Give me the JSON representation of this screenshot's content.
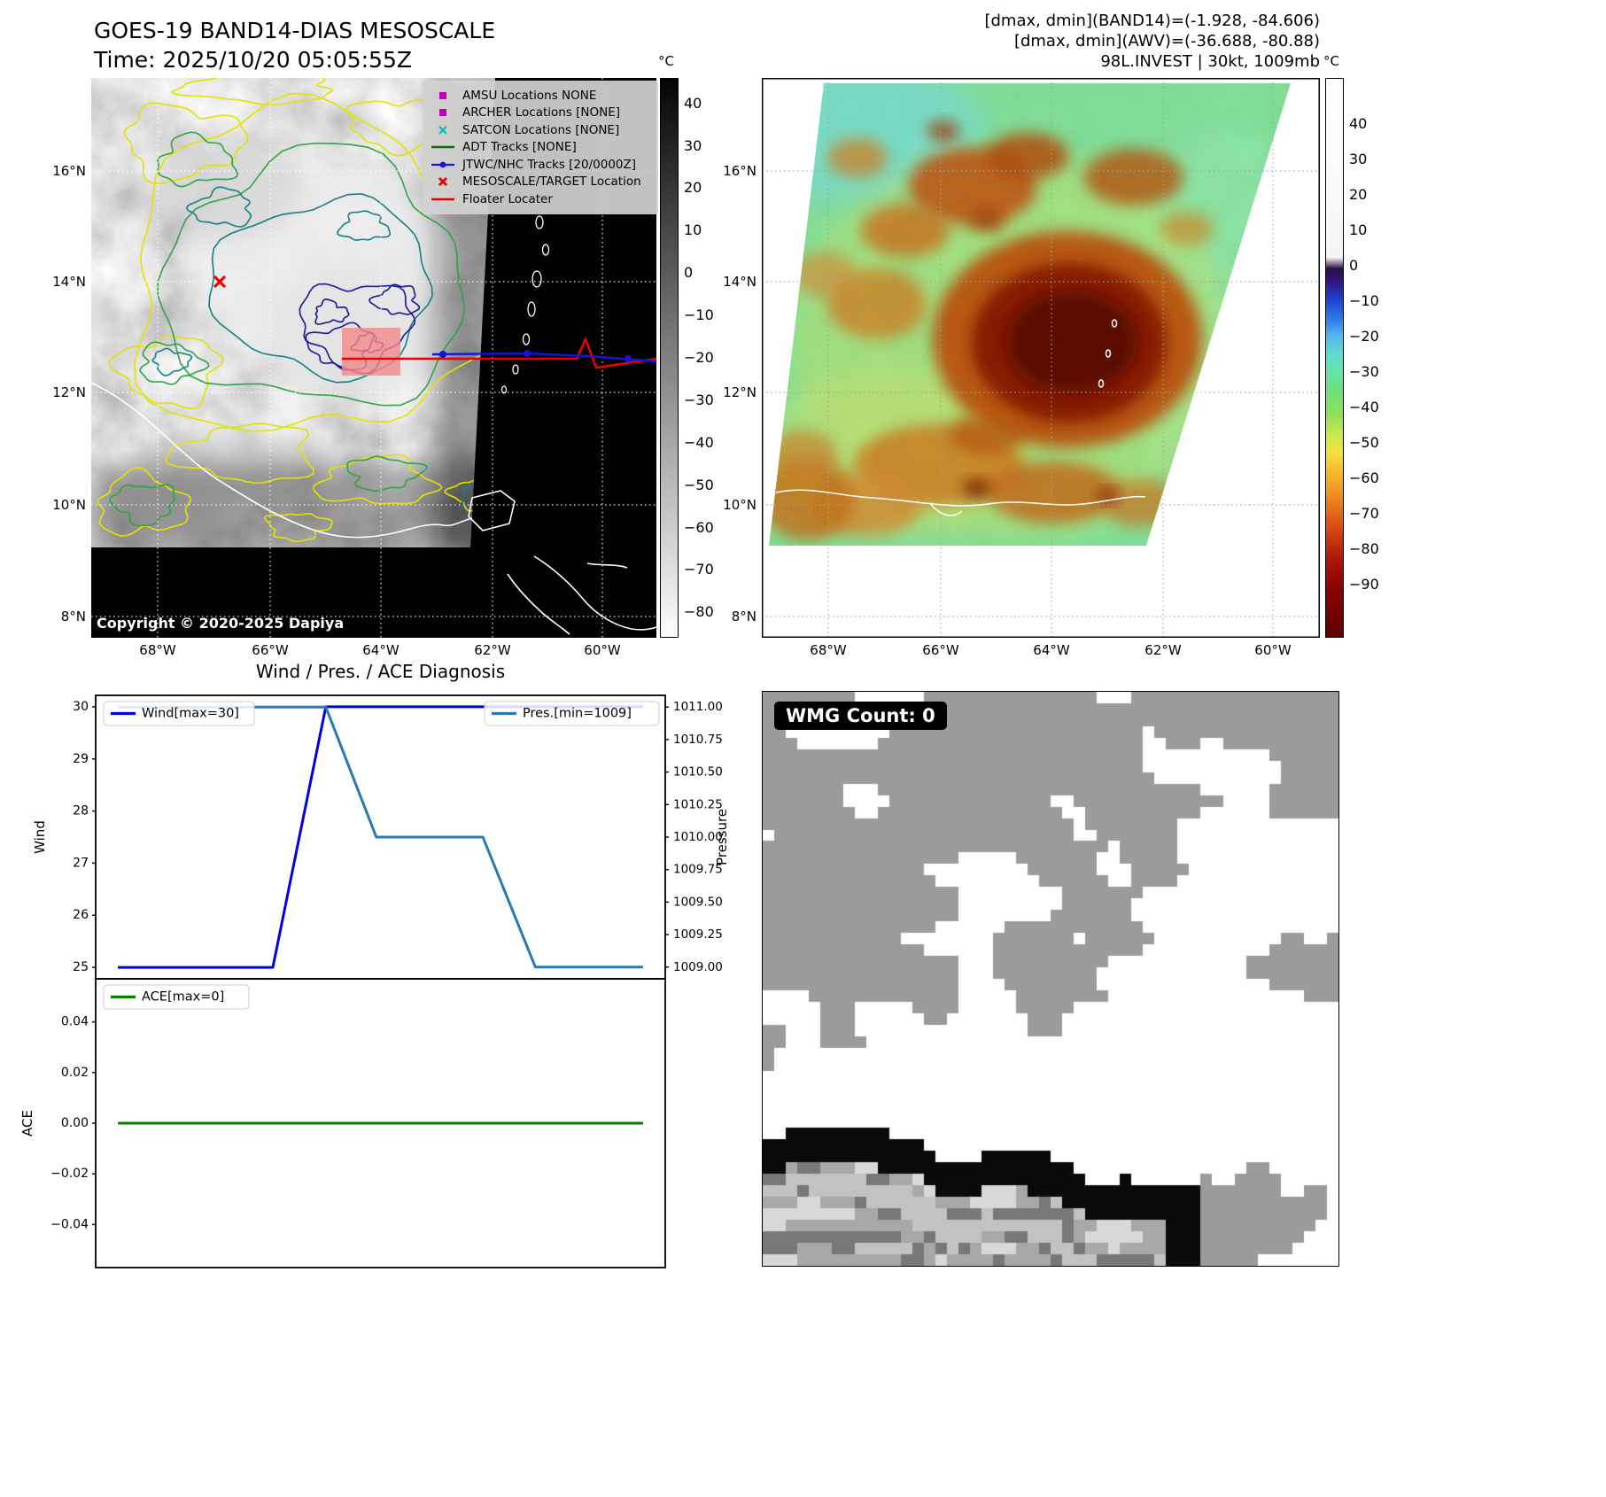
{
  "band14": {
    "title": "GOES-19 BAND14-DIAS MESOSCALE",
    "time": "Time: 2025/10/20 05:05:55Z",
    "copyright": "Copyright © 2020-2025 Dapiya",
    "colorbar": {
      "unit": "°C",
      "ticks": [
        "40",
        "30",
        "20",
        "10",
        "0",
        "−10",
        "−20",
        "−30",
        "−40",
        "−50",
        "−60",
        "−70",
        "−80"
      ]
    },
    "legend": {
      "items": [
        {
          "label": "AMSU Locations NONE",
          "marker": "square",
          "color": "#b800b8"
        },
        {
          "label": "ARCHER Locations [NONE]",
          "marker": "square",
          "color": "#b800b8"
        },
        {
          "label": "SATCON Locations [NONE]",
          "marker": "x",
          "color": "#00b8b8"
        },
        {
          "label": "ADT Tracks [NONE]",
          "marker": "line",
          "color": "#0c6b0c"
        },
        {
          "label": "JTWC/NHC Tracks [20/0000Z]",
          "marker": "line-dot",
          "color": "#1414e6"
        },
        {
          "label": "MESOSCALE/TARGET Location",
          "marker": "x-bold",
          "color": "#e60000"
        },
        {
          "label": "Floater Locater",
          "marker": "line",
          "color": "#e60000"
        }
      ]
    }
  },
  "awv": {
    "annotations": [
      "[dmax, dmin](BAND14)=(-1.928, -84.606)",
      "[dmax, dmin](AWV)=(-36.688, -80.88)",
      "98L.INVEST | 30kt, 1009mb"
    ],
    "colorbar": {
      "unit": "°C",
      "ticks": [
        "40",
        "30",
        "20",
        "10",
        "0",
        "−10",
        "−20",
        "−30",
        "−40",
        "−50",
        "−60",
        "−70",
        "−80",
        "−90"
      ]
    }
  },
  "map_axes": {
    "lat": [
      "16°N",
      "14°N",
      "12°N",
      "10°N",
      "8°N"
    ],
    "lon": [
      "68°W",
      "66°W",
      "64°W",
      "62°W",
      "60°W"
    ]
  },
  "wmg": {
    "label": "WMG Count: 0"
  },
  "chart_data": [
    {
      "type": "line",
      "title": "Wind / Pres. / ACE Diagnosis",
      "axes": {
        "left": {
          "label": "Wind",
          "lim": [
            24.78,
            30.22
          ],
          "ticks": [
            "30",
            "29",
            "28",
            "27",
            "26",
            "25"
          ]
        },
        "right": {
          "label": "Pressure",
          "lim": [
            1008.91,
            1011.09
          ],
          "ticks": [
            "1011.00",
            "1010.75",
            "1010.50",
            "1010.25",
            "1010.00",
            "1009.75",
            "1009.50",
            "1009.25",
            "1009.00"
          ]
        }
      },
      "series": [
        {
          "name": "Wind[max=30]",
          "color": "#0000e6",
          "axis": "left",
          "x": [
            0,
            0.295,
            0.396,
            1
          ],
          "y": [
            25,
            25,
            30,
            30
          ]
        },
        {
          "name": "Pres.[min=1009]",
          "color": "#2878b4",
          "axis": "right",
          "x": [
            0,
            0.396,
            0.492,
            0.695,
            0.795,
            1
          ],
          "y": [
            1011,
            1011,
            1010,
            1010,
            1009,
            1009
          ]
        }
      ],
      "legend_position": [
        "upper left",
        "upper right"
      ],
      "grid": false
    },
    {
      "type": "line",
      "axes": {
        "left": {
          "label": "ACE",
          "lim": [
            -0.057,
            0.057
          ],
          "ticks": [
            "0.04",
            "0.02",
            "0.00",
            "−0.02",
            "−0.04"
          ]
        }
      },
      "series": [
        {
          "name": "ACE[max=0]",
          "color": "#007f00",
          "axis": "left",
          "x": [
            0,
            1
          ],
          "y": [
            0,
            0
          ]
        }
      ],
      "legend_position": [
        "upper left"
      ],
      "grid": false
    }
  ]
}
